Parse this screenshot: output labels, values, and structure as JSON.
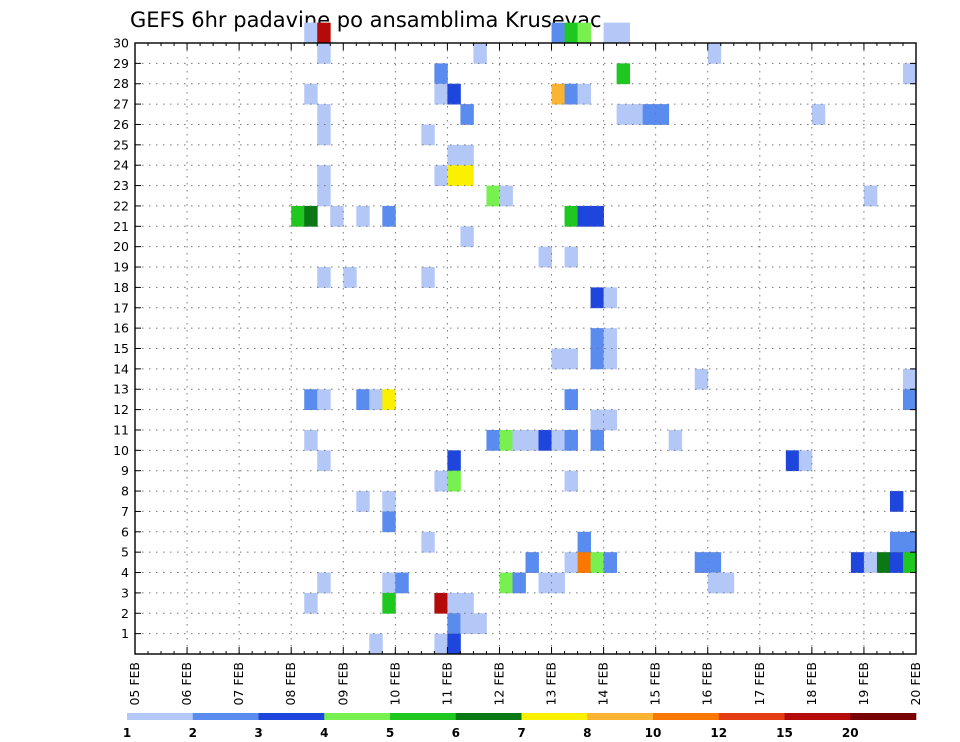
{
  "chart_data": {
    "type": "heatmap",
    "title": "GEFS 6hr padavine po ansamblima Krusevac",
    "xlabel": "",
    "ylabel": "",
    "x_tick_labels": [
      "05 FEB",
      "06 FEB",
      "07 FEB",
      "08 FEB",
      "09 FEB",
      "10 FEB",
      "11 FEB",
      "12 FEB",
      "13 FEB",
      "14 FEB",
      "15 FEB",
      "16 FEB",
      "17 FEB",
      "18 FEB",
      "19 FEB",
      "20 FEB"
    ],
    "y_tick_labels": [
      "1",
      "2",
      "3",
      "4",
      "5",
      "6",
      "7",
      "8",
      "9",
      "10",
      "11",
      "12",
      "13",
      "14",
      "15",
      "16",
      "17",
      "18",
      "19",
      "20",
      "21",
      "22",
      "23",
      "24",
      "25",
      "26",
      "27",
      "28",
      "29",
      "30"
    ],
    "x_steps_6h": 60,
    "ylim": [
      0,
      30
    ],
    "grid": true,
    "colorbar": {
      "labels": [
        "1",
        "2",
        "3",
        "4",
        "5",
        "6",
        "7",
        "8",
        "10",
        "12",
        "15",
        "20"
      ],
      "colors": [
        "#b4c8f8",
        "#5a8cf0",
        "#1e46dc",
        "#78f050",
        "#1ec81e",
        "#0a7814",
        "#faf000",
        "#fab432",
        "#fa7800",
        "#e63c14",
        "#b40a0a",
        "#780000"
      ]
    },
    "cells": [
      [
        13,
        30,
        0
      ],
      [
        14,
        30,
        10
      ],
      [
        32,
        30,
        1
      ],
      [
        33,
        30,
        4
      ],
      [
        34,
        30,
        3
      ],
      [
        36,
        30,
        0
      ],
      [
        37,
        30,
        0
      ],
      [
        14,
        29,
        0
      ],
      [
        26,
        29,
        0
      ],
      [
        44,
        29,
        0
      ],
      [
        23,
        28,
        1
      ],
      [
        37,
        28,
        4
      ],
      [
        59,
        28,
        0
      ],
      [
        13,
        27,
        0
      ],
      [
        23,
        27,
        0
      ],
      [
        24,
        27,
        2
      ],
      [
        32,
        27,
        7
      ],
      [
        33,
        27,
        1
      ],
      [
        34,
        27,
        0
      ],
      [
        14,
        26,
        0
      ],
      [
        25,
        26,
        1
      ],
      [
        37,
        26,
        0
      ],
      [
        38,
        26,
        0
      ],
      [
        39,
        26,
        1
      ],
      [
        40,
        26,
        1
      ],
      [
        52,
        26,
        0
      ],
      [
        14,
        25,
        0
      ],
      [
        22,
        25,
        0
      ],
      [
        24,
        24,
        0
      ],
      [
        25,
        24,
        0
      ],
      [
        14,
        23,
        0
      ],
      [
        23,
        23,
        0
      ],
      [
        24,
        23,
        6
      ],
      [
        25,
        23,
        6
      ],
      [
        14,
        22,
        0
      ],
      [
        27,
        22,
        3
      ],
      [
        28,
        22,
        0
      ],
      [
        56,
        22,
        0
      ],
      [
        12,
        21,
        4
      ],
      [
        13,
        21,
        5
      ],
      [
        15,
        21,
        0
      ],
      [
        17,
        21,
        0
      ],
      [
        19,
        21,
        1
      ],
      [
        33,
        21,
        4
      ],
      [
        34,
        21,
        2
      ],
      [
        35,
        21,
        2
      ],
      [
        25,
        20,
        0
      ],
      [
        31,
        19,
        0
      ],
      [
        33,
        19,
        0
      ],
      [
        14,
        18,
        0
      ],
      [
        16,
        18,
        0
      ],
      [
        22,
        18,
        0
      ],
      [
        35,
        17,
        2
      ],
      [
        36,
        17,
        0
      ],
      [
        35,
        15,
        1
      ],
      [
        36,
        15,
        0
      ],
      [
        32,
        14,
        0
      ],
      [
        33,
        14,
        0
      ],
      [
        35,
        14,
        1
      ],
      [
        36,
        14,
        0
      ],
      [
        43,
        13,
        0
      ],
      [
        59,
        13,
        0
      ],
      [
        13,
        12,
        1
      ],
      [
        14,
        12,
        0
      ],
      [
        17,
        12,
        1
      ],
      [
        18,
        12,
        0
      ],
      [
        19,
        12,
        6
      ],
      [
        33,
        12,
        1
      ],
      [
        59,
        12,
        1
      ],
      [
        35,
        11,
        0
      ],
      [
        36,
        11,
        0
      ],
      [
        13,
        10,
        0
      ],
      [
        27,
        10,
        1
      ],
      [
        28,
        10,
        3
      ],
      [
        29,
        10,
        0
      ],
      [
        30,
        10,
        0
      ],
      [
        31,
        10,
        2
      ],
      [
        32,
        10,
        0
      ],
      [
        33,
        10,
        1
      ],
      [
        35,
        10,
        1
      ],
      [
        41,
        10,
        0
      ],
      [
        14,
        9,
        0
      ],
      [
        24,
        9,
        2
      ],
      [
        50,
        9,
        2
      ],
      [
        51,
        9,
        0
      ],
      [
        23,
        8,
        0
      ],
      [
        24,
        8,
        3
      ],
      [
        33,
        8,
        0
      ],
      [
        17,
        7,
        0
      ],
      [
        19,
        7,
        0
      ],
      [
        58,
        7,
        2
      ],
      [
        19,
        6,
        1
      ],
      [
        22,
        5,
        0
      ],
      [
        34,
        5,
        1
      ],
      [
        58,
        5,
        1
      ],
      [
        59,
        5,
        1
      ],
      [
        30,
        4,
        1
      ],
      [
        33,
        4,
        0
      ],
      [
        34,
        4,
        8
      ],
      [
        35,
        4,
        3
      ],
      [
        36,
        4,
        1
      ],
      [
        43,
        4,
        1
      ],
      [
        44,
        4,
        1
      ],
      [
        55,
        4,
        2
      ],
      [
        56,
        4,
        0
      ],
      [
        57,
        4,
        5
      ],
      [
        58,
        4,
        2
      ],
      [
        59,
        4,
        4
      ],
      [
        14,
        3,
        0
      ],
      [
        19,
        3,
        0
      ],
      [
        20,
        3,
        1
      ],
      [
        28,
        3,
        3
      ],
      [
        29,
        3,
        1
      ],
      [
        31,
        3,
        0
      ],
      [
        32,
        3,
        0
      ],
      [
        44,
        3,
        0
      ],
      [
        45,
        3,
        0
      ],
      [
        13,
        2,
        0
      ],
      [
        19,
        2,
        4
      ],
      [
        23,
        2,
        10
      ],
      [
        24,
        2,
        0
      ],
      [
        25,
        2,
        0
      ],
      [
        24,
        1,
        1
      ],
      [
        25,
        1,
        0
      ],
      [
        26,
        1,
        0
      ],
      [
        18,
        0,
        0
      ],
      [
        23,
        0,
        0
      ],
      [
        24,
        0,
        2
      ]
    ]
  }
}
